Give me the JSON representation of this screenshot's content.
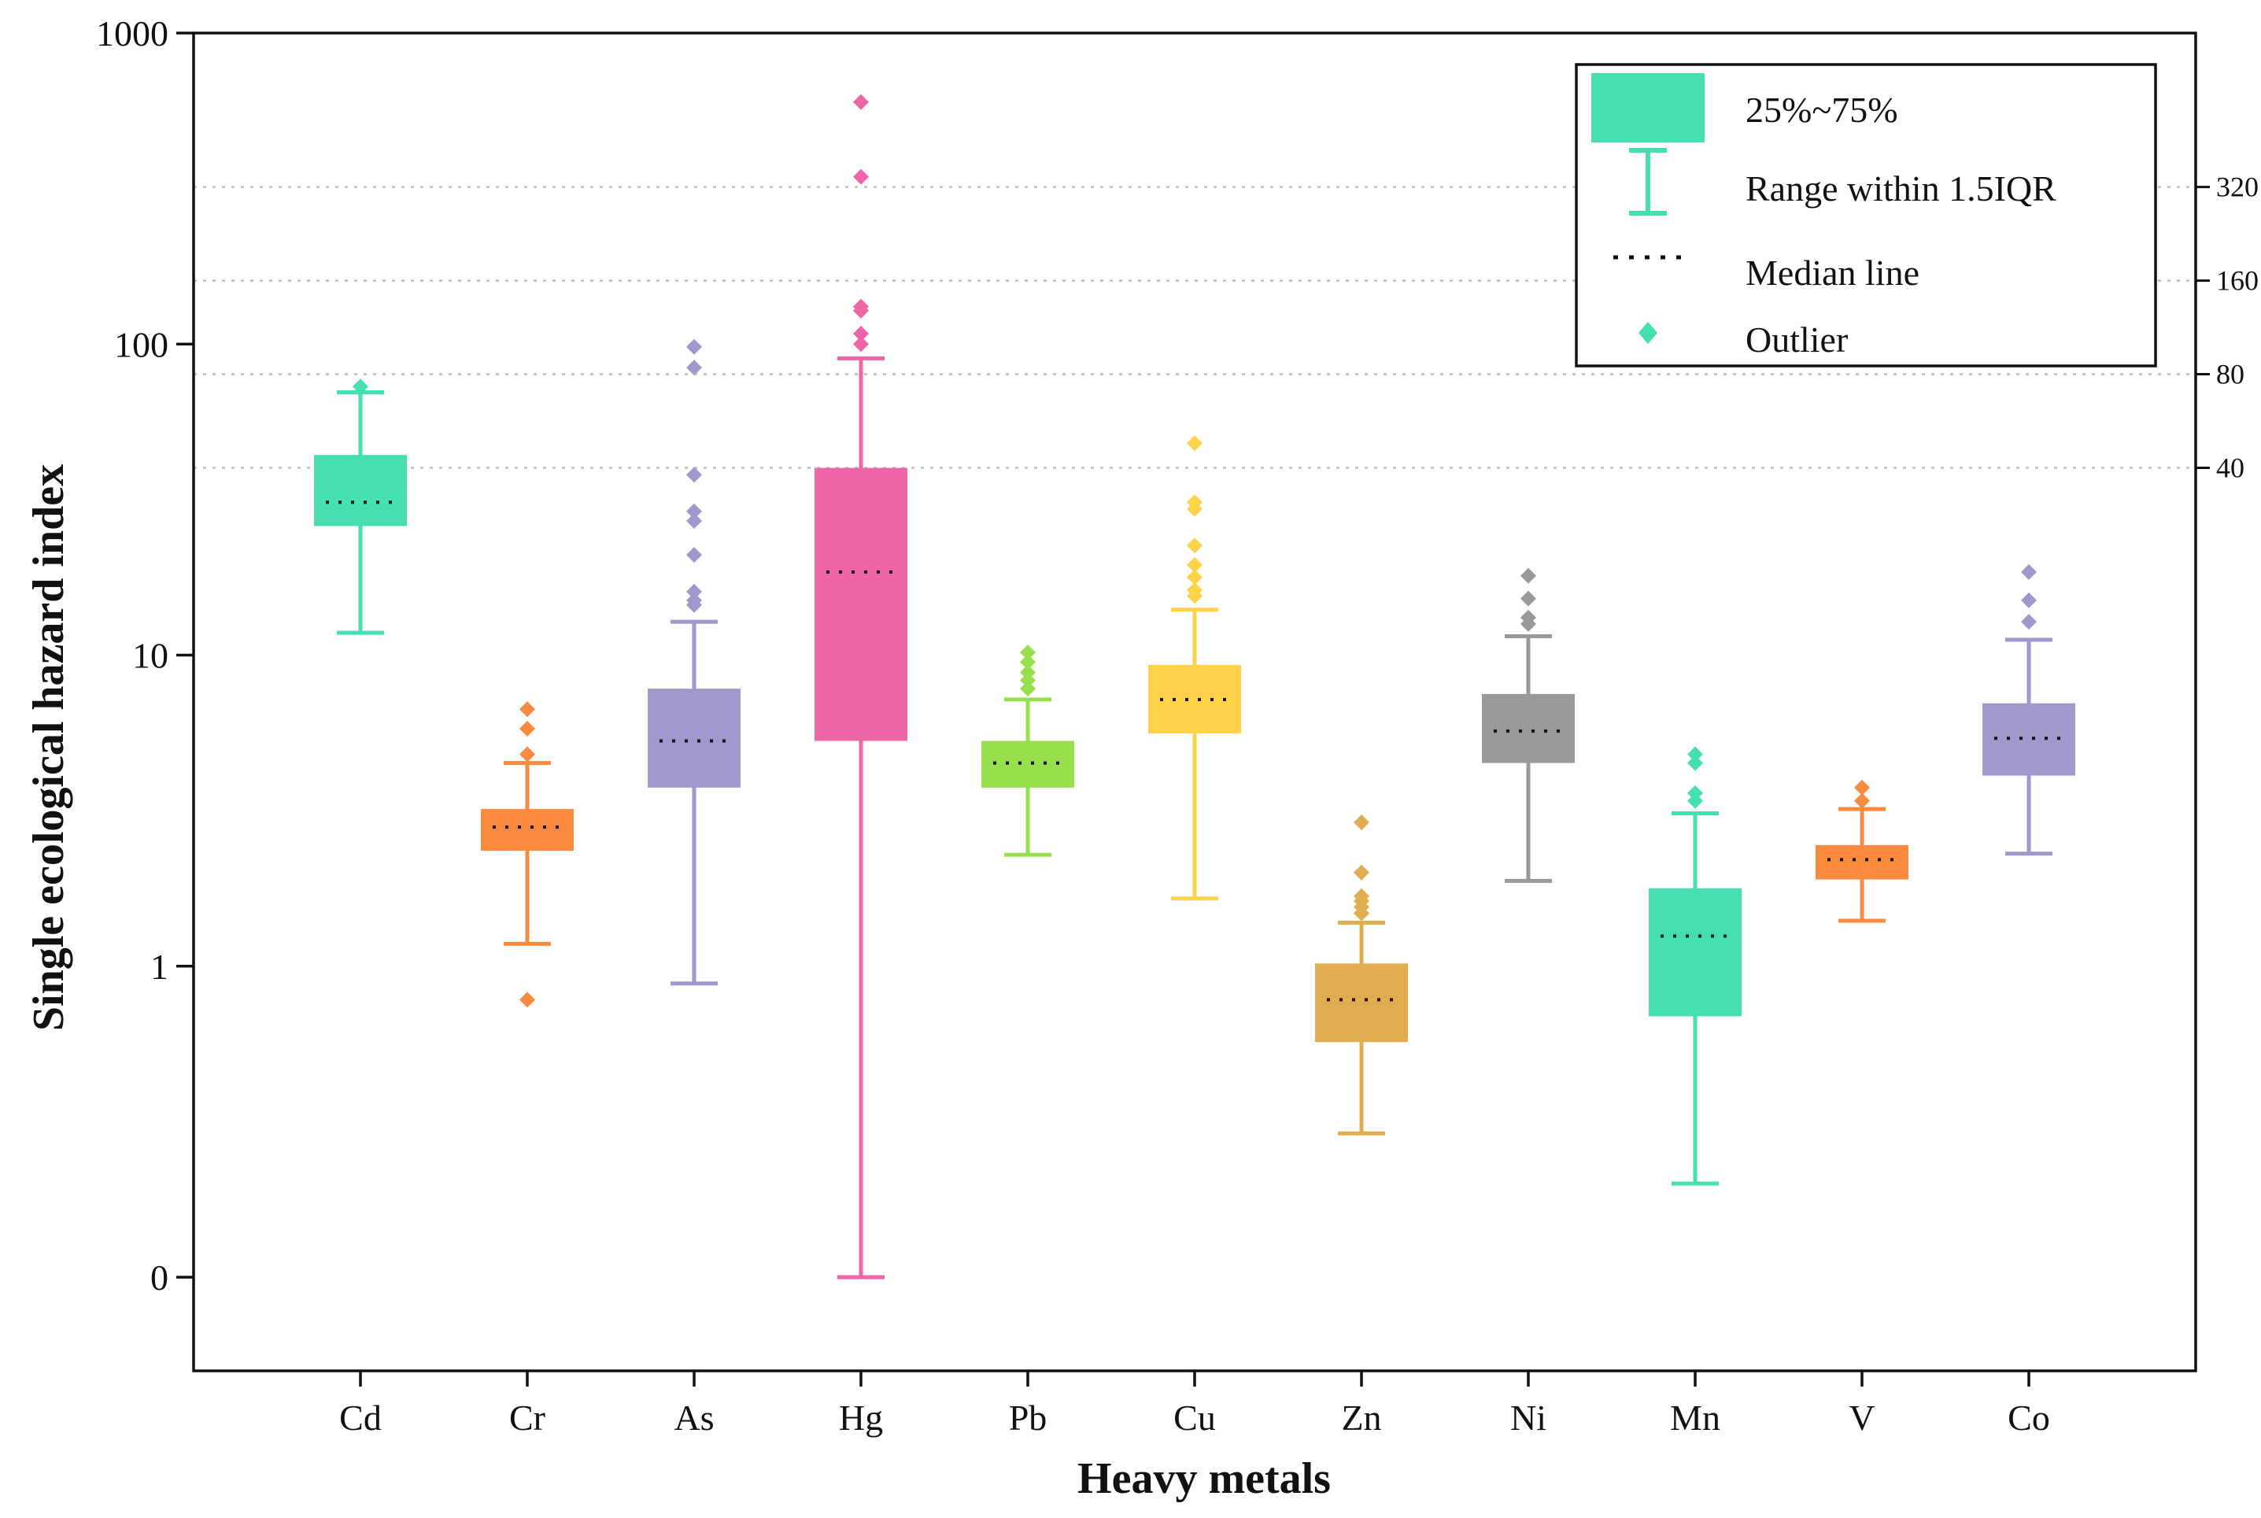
{
  "chart_data": {
    "type": "box",
    "yscale": "log",
    "ylim": [
      0.07,
      1000
    ],
    "xlabel": "Heavy metals",
    "ylabel": "Single ecological hazard index",
    "yticks": [
      {
        "value": 0.1,
        "label": "0"
      },
      {
        "value": 1,
        "label": "1"
      },
      {
        "value": 10,
        "label": "10"
      },
      {
        "value": 100,
        "label": "100"
      },
      {
        "value": 1000,
        "label": "1000"
      }
    ],
    "thresholds": [
      {
        "value": 40,
        "label": "40"
      },
      {
        "value": 80,
        "label": "80"
      },
      {
        "value": 160,
        "label": "160"
      },
      {
        "value": 320,
        "label": "320"
      }
    ],
    "legend": {
      "box": "25%~75%",
      "range": "Range within 1.5IQR",
      "median": "Median line",
      "outlier": "Outlier"
    },
    "series": [
      {
        "name": "Cd",
        "color": "#45dfb0",
        "q1": 26,
        "median": 31,
        "q3": 44,
        "whisker_low": 11.8,
        "whisker_high": 70,
        "outliers": [
          73
        ]
      },
      {
        "name": "Cr",
        "color": "#f98a3e",
        "q1": 2.35,
        "median": 2.8,
        "q3": 3.2,
        "whisker_low": 1.18,
        "whisker_high": 4.5,
        "outliers": [
          0.78,
          4.8,
          5.8,
          6.7
        ]
      },
      {
        "name": "As",
        "color": "#9e98cc",
        "q1": 3.75,
        "median": 5.3,
        "q3": 7.8,
        "whisker_low": 0.88,
        "whisker_high": 12.8,
        "outliers": [
          14.5,
          15,
          16,
          21,
          27,
          29,
          38,
          84,
          98
        ]
      },
      {
        "name": "Hg",
        "color": "#ee66a8",
        "q1": 5.3,
        "median": 18.5,
        "q3": 40,
        "whisker_low": 0.1,
        "whisker_high": 90,
        "outliers": [
          100,
          108,
          128,
          132,
          345,
          600
        ]
      },
      {
        "name": "Pb",
        "color": "#97e04b",
        "q1": 3.75,
        "median": 4.5,
        "q3": 5.3,
        "whisker_low": 2.28,
        "whisker_high": 7.2,
        "outliers": [
          7.8,
          8.3,
          8.8,
          9.5,
          10.2
        ]
      },
      {
        "name": "Cu",
        "color": "#ffd24a",
        "q1": 5.6,
        "median": 7.2,
        "q3": 9.3,
        "whisker_low": 1.65,
        "whisker_high": 14,
        "outliers": [
          15.5,
          16.2,
          17.8,
          19.5,
          22.5,
          29.5,
          31,
          48
        ]
      },
      {
        "name": "Zn",
        "color": "#e0ad50",
        "q1": 0.57,
        "median": 0.78,
        "q3": 1.02,
        "whisker_low": 0.29,
        "whisker_high": 1.38,
        "outliers": [
          1.48,
          1.55,
          1.62,
          1.68,
          2.0,
          2.9
        ]
      },
      {
        "name": "Ni",
        "color": "#999999",
        "q1": 4.5,
        "median": 5.7,
        "q3": 7.5,
        "whisker_low": 1.88,
        "whisker_high": 11.5,
        "outliers": [
          12.6,
          13.2,
          15.2,
          18
        ]
      },
      {
        "name": "Mn",
        "color": "#45dfb0",
        "q1": 0.69,
        "median": 1.25,
        "q3": 1.78,
        "whisker_low": 0.2,
        "whisker_high": 3.1,
        "outliers": [
          3.4,
          3.6,
          4.5,
          4.8
        ]
      },
      {
        "name": "V",
        "color": "#f98a3e",
        "q1": 1.9,
        "median": 2.2,
        "q3": 2.45,
        "whisker_low": 1.4,
        "whisker_high": 3.2,
        "outliers": [
          3.4,
          3.75
        ]
      },
      {
        "name": "Co",
        "color": "#9e98cc",
        "q1": 4.1,
        "median": 5.4,
        "q3": 7,
        "whisker_low": 2.3,
        "whisker_high": 11.2,
        "outliers": [
          12.8,
          15,
          18.5
        ]
      }
    ]
  }
}
